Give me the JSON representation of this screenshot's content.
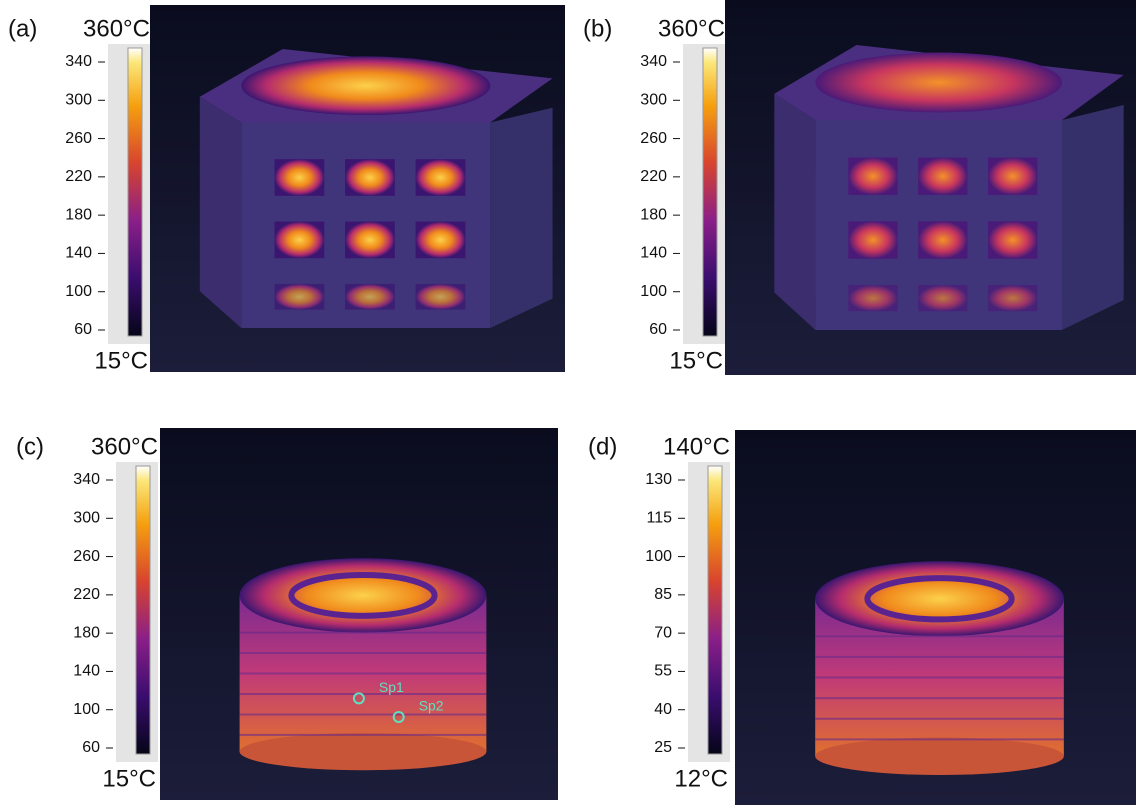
{
  "panels": [
    {
      "label": "(a)",
      "max": "360°C",
      "min": "15°C",
      "ticks": [
        340,
        300,
        260,
        220,
        180,
        140,
        100,
        60
      ]
    },
    {
      "label": "(b)",
      "max": "360°C",
      "min": "15°C",
      "ticks": [
        340,
        300,
        260,
        220,
        180,
        140,
        100,
        60
      ]
    },
    {
      "label": "(c)",
      "max": "360°C",
      "min": "15°C",
      "ticks": [
        340,
        300,
        260,
        220,
        180,
        140,
        100,
        60
      ],
      "annotations": [
        "Sp1",
        "Sp2"
      ]
    },
    {
      "label": "(d)",
      "max": "140°C",
      "min": "12°C",
      "ticks": [
        130,
        115,
        100,
        85,
        70,
        55,
        40,
        25
      ]
    }
  ]
}
